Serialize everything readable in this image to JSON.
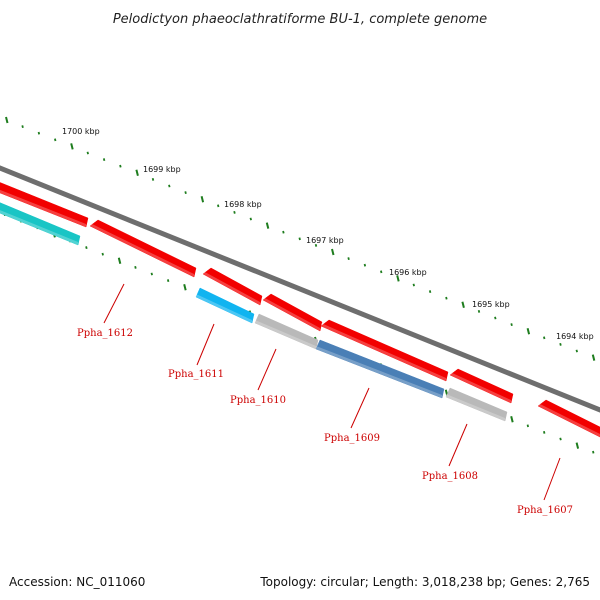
{
  "title": "Pelodictyon phaeoclathratiforme BU-1, complete genome",
  "accession": "Accession: NC_011060",
  "summary": "Topology: circular; Length: 3,018,238 bp; Genes: 2,765",
  "colors": {
    "backbone": "#6e6e6e",
    "tick": "#1e7d1e",
    "gene_red": "#f20000",
    "gene_cyan": "#19c5c5",
    "gene_lightblue": "#10b4f0",
    "gene_steel": "#4a7fb6",
    "gene_gray": "#b9b9b9",
    "label": "#cc0000"
  },
  "ruler": [
    {
      "label": "1700 kbp"
    },
    {
      "label": "1699 kbp"
    },
    {
      "label": "1698 kbp"
    },
    {
      "label": "1697 kbp"
    },
    {
      "label": "1696 kbp"
    },
    {
      "label": "1695 kbp"
    },
    {
      "label": "1694 kbp"
    }
  ],
  "genes": [
    {
      "strand": "outer",
      "color": "red"
    },
    {
      "strand": "outer",
      "color": "red"
    },
    {
      "strand": "outer",
      "color": "red"
    },
    {
      "strand": "outer",
      "color": "red"
    },
    {
      "strand": "outer",
      "color": "red"
    },
    {
      "strand": "outer",
      "color": "red"
    },
    {
      "strand": "outer",
      "color": "red"
    },
    {
      "strand": "inner",
      "color": "cyan"
    },
    {
      "strand": "inner",
      "color": "lightblue"
    },
    {
      "strand": "inner",
      "color": "gray"
    },
    {
      "strand": "inner",
      "color": "steel"
    },
    {
      "strand": "inner",
      "color": "gray"
    }
  ],
  "gene_labels": [
    {
      "text": "Ppha_1612"
    },
    {
      "text": "Ppha_1611"
    },
    {
      "text": "Ppha_1610"
    },
    {
      "text": "Ppha_1609"
    },
    {
      "text": "Ppha_1608"
    },
    {
      "text": "Ppha_1607"
    }
  ]
}
